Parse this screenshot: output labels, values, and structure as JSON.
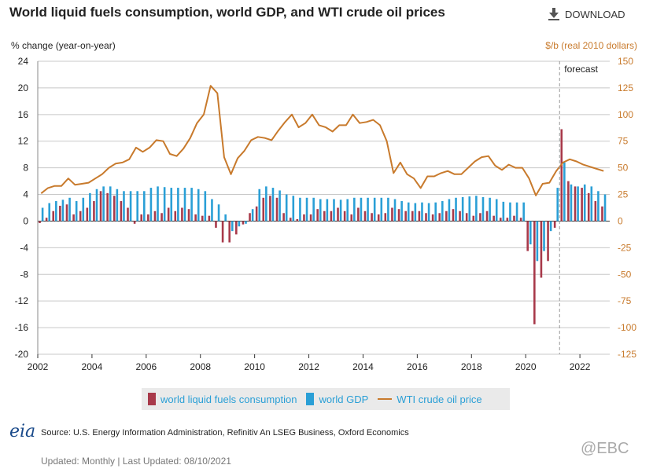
{
  "header": {
    "title": "World liquid fuels consumption, world GDP, and WTI crude oil prices",
    "download_label": "DOWNLOAD"
  },
  "axes": {
    "left_title": "% change (year-on-year)",
    "right_title": "$/b (real 2010 dollars)"
  },
  "forecast_label": "forecast",
  "legend": {
    "consumption": "world liquid fuels consumption",
    "gdp": "world GDP",
    "wti": "WTI crude oil price"
  },
  "colors": {
    "consumption": "#a8394a",
    "gdp": "#2a9fd6",
    "wti": "#c87a2c",
    "grid": "#c8c8c8"
  },
  "footer": {
    "logo": "eia",
    "source": "Source: U.S. Energy Information Administration, Refinitiv An LSEG Business, Oxford Economics",
    "updated": "Updated: Monthly | Last Updated: 08/10/2021",
    "watermark": "@EBC"
  },
  "chart_data": {
    "type": "bar",
    "x_range": [
      2002,
      2023.1
    ],
    "x_ticks": [
      "2002",
      "2004",
      "2006",
      "2008",
      "2010",
      "2012",
      "2014",
      "2016",
      "2018",
      "2020",
      "2022"
    ],
    "y_left_ticks": [
      "24",
      "20",
      "16",
      "12",
      "8",
      "4",
      "0",
      "-4",
      "-8",
      "-12",
      "-16",
      "-20"
    ],
    "y_right_ticks": [
      "150",
      "125",
      "100",
      "75",
      "50",
      "25",
      "0",
      "-25",
      "-50",
      "-75",
      "-100",
      "-125"
    ],
    "ylim_left": [
      -20,
      24
    ],
    "ylim_right": [
      -125,
      150
    ],
    "forecast_start": 2021.25,
    "quarters": [
      2002.0,
      2002.25,
      2002.5,
      2002.75,
      2003.0,
      2003.25,
      2003.5,
      2003.75,
      2004.0,
      2004.25,
      2004.5,
      2004.75,
      2005.0,
      2005.25,
      2005.5,
      2005.75,
      2006.0,
      2006.25,
      2006.5,
      2006.75,
      2007.0,
      2007.25,
      2007.5,
      2007.75,
      2008.0,
      2008.25,
      2008.5,
      2008.75,
      2009.0,
      2009.25,
      2009.5,
      2009.75,
      2010.0,
      2010.25,
      2010.5,
      2010.75,
      2011.0,
      2011.25,
      2011.5,
      2011.75,
      2012.0,
      2012.25,
      2012.5,
      2012.75,
      2013.0,
      2013.25,
      2013.5,
      2013.75,
      2014.0,
      2014.25,
      2014.5,
      2014.75,
      2015.0,
      2015.25,
      2015.5,
      2015.75,
      2016.0,
      2016.25,
      2016.5,
      2016.75,
      2017.0,
      2017.25,
      2017.5,
      2017.75,
      2018.0,
      2018.25,
      2018.5,
      2018.75,
      2019.0,
      2019.25,
      2019.5,
      2019.75,
      2020.0,
      2020.25,
      2020.5,
      2020.75,
      2021.0,
      2021.25,
      2021.5,
      2021.75,
      2022.0,
      2022.25,
      2022.5,
      2022.75
    ],
    "series": [
      {
        "name": "world liquid fuels consumption",
        "axis": "left",
        "values": [
          -0.3,
          0.5,
          1.5,
          2.3,
          2.5,
          1.0,
          1.5,
          2.0,
          3.0,
          4.5,
          4.2,
          3.8,
          3.0,
          2.0,
          -0.4,
          1.0,
          1.0,
          1.5,
          1.2,
          2.0,
          1.5,
          2.0,
          1.8,
          1.0,
          0.8,
          0.8,
          -1.0,
          -3.2,
          -3.2,
          -2.0,
          -0.5,
          1.2,
          2.2,
          3.5,
          3.8,
          3.5,
          1.2,
          0.5,
          0.3,
          1.0,
          1.0,
          1.8,
          1.5,
          1.5,
          2.0,
          1.5,
          1.0,
          2.0,
          1.5,
          1.2,
          1.0,
          1.2,
          2.0,
          1.8,
          1.5,
          1.5,
          1.5,
          1.2,
          1.0,
          1.2,
          1.5,
          1.8,
          1.5,
          1.2,
          0.8,
          1.2,
          1.5,
          0.8,
          0.5,
          0.5,
          0.8,
          0.5,
          -4.5,
          -15.5,
          -8.5,
          -6.0,
          -1.0,
          13.8,
          6.0,
          5.2,
          5.0,
          4.2,
          3.0,
          2.2
        ]
      },
      {
        "name": "world GDP",
        "axis": "left",
        "values": [
          2.0,
          2.7,
          3.0,
          3.2,
          3.5,
          3.0,
          3.5,
          4.2,
          4.8,
          5.2,
          5.2,
          4.8,
          4.5,
          4.5,
          4.5,
          4.5,
          5.0,
          5.2,
          5.1,
          5.0,
          5.0,
          5.0,
          5.0,
          4.8,
          4.5,
          3.3,
          2.5,
          1.0,
          -1.5,
          -0.8,
          -0.4,
          1.8,
          4.8,
          5.2,
          5.0,
          4.6,
          4.0,
          3.8,
          3.5,
          3.5,
          3.5,
          3.3,
          3.3,
          3.3,
          3.2,
          3.3,
          3.5,
          3.5,
          3.5,
          3.5,
          3.5,
          3.5,
          3.3,
          3.0,
          2.8,
          2.7,
          2.8,
          2.7,
          2.8,
          3.0,
          3.3,
          3.5,
          3.6,
          3.7,
          3.8,
          3.6,
          3.5,
          3.3,
          2.9,
          2.8,
          2.8,
          2.8,
          -3.5,
          -6.0,
          -4.5,
          -1.5,
          5.0,
          8.8,
          5.5,
          5.2,
          5.5,
          5.2,
          4.5,
          4.0
        ]
      },
      {
        "name": "WTI crude oil price",
        "axis": "right",
        "values": [
          26,
          31,
          33,
          33,
          40,
          34,
          35,
          36,
          40,
          44,
          50,
          54,
          55,
          58,
          69,
          65,
          69,
          76,
          75,
          63,
          61,
          68,
          78,
          92,
          100,
          127,
          120,
          60,
          44,
          59,
          66,
          76,
          79,
          78,
          76,
          85,
          93,
          100,
          88,
          92,
          100,
          90,
          88,
          84,
          90,
          90,
          100,
          92,
          93,
          95,
          90,
          75,
          45,
          55,
          44,
          40,
          31,
          42,
          42,
          45,
          47,
          44,
          44,
          50,
          56,
          60,
          61,
          52,
          48,
          53,
          50,
          50,
          40,
          24,
          35,
          36,
          47,
          55,
          58,
          56,
          53,
          51,
          49,
          47
        ]
      }
    ]
  }
}
